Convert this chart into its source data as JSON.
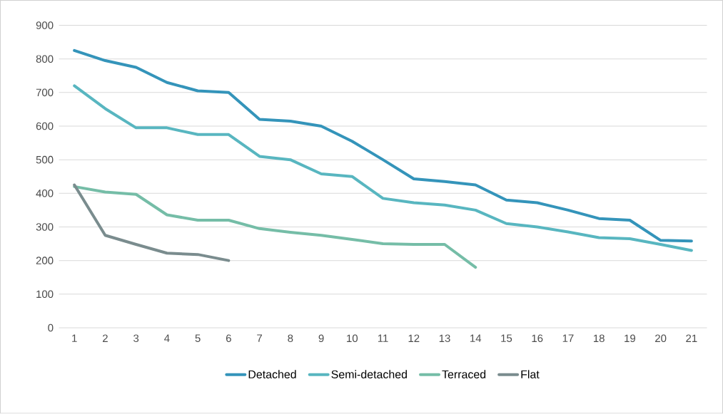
{
  "chart_data": {
    "type": "line",
    "categories": [
      "1",
      "2",
      "3",
      "4",
      "5",
      "6",
      "7",
      "8",
      "9",
      "10",
      "11",
      "12",
      "13",
      "14",
      "15",
      "16",
      "17",
      "18",
      "19",
      "20",
      "21"
    ],
    "series": [
      {
        "name": "Detached",
        "color": "#3494ba",
        "values": [
          825,
          795,
          775,
          730,
          705,
          700,
          620,
          615,
          600,
          555,
          500,
          443,
          435,
          425,
          380,
          372,
          350,
          325,
          320,
          260,
          258
        ]
      },
      {
        "name": "Semi-detached",
        "color": "#58b6c0",
        "values": [
          720,
          652,
          595,
          595,
          575,
          575,
          510,
          500,
          458,
          450,
          385,
          372,
          365,
          350,
          310,
          300,
          285,
          268,
          265,
          248,
          230
        ]
      },
      {
        "name": "Terraced",
        "color": "#75bda7",
        "values": [
          420,
          404,
          397,
          336,
          320,
          320,
          295,
          284,
          275,
          263,
          250,
          248,
          248,
          180,
          null,
          null,
          null,
          null,
          null,
          null,
          null
        ]
      },
      {
        "name": "Flat",
        "color": "#7a8c8e",
        "values": [
          425,
          275,
          248,
          222,
          218,
          200,
          null,
          null,
          null,
          null,
          null,
          null,
          null,
          null,
          null,
          null,
          null,
          null,
          null,
          null,
          null
        ]
      }
    ],
    "ylim": [
      0,
      900
    ],
    "yticks": [
      0,
      100,
      200,
      300,
      400,
      500,
      600,
      700,
      800,
      900
    ],
    "grid": "y",
    "legend": "bottom",
    "marker": "none",
    "line_style": "solid"
  }
}
